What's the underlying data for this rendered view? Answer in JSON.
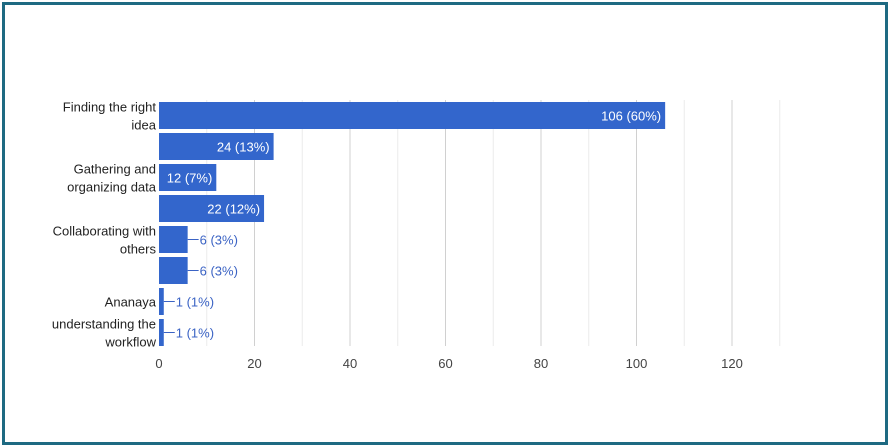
{
  "chart_data": {
    "type": "bar",
    "orientation": "horizontal",
    "categories": [
      "Finding the right idea",
      "",
      "Gathering and organizing data",
      "",
      "Collaborating with others",
      "",
      "Ananaya",
      "understanding the workflow"
    ],
    "values": [
      106,
      24,
      12,
      22,
      6,
      6,
      1,
      1
    ],
    "value_labels": [
      "106 (60%)",
      "24 (13%)",
      "12 (7%)",
      "22 (12%)",
      "6 (3%)",
      "6 (3%)",
      "1 (1%)",
      "1 (1%)"
    ],
    "x_ticks": [
      0,
      20,
      40,
      60,
      80,
      100,
      120
    ],
    "xlim": [
      0,
      130
    ],
    "grid": true,
    "title": "",
    "xlabel": "",
    "ylabel": ""
  },
  "colors": {
    "bar": "#3366cc",
    "frame": "#1e6a82",
    "grid": "#dddddd",
    "outside_label": "#3b63c4"
  }
}
